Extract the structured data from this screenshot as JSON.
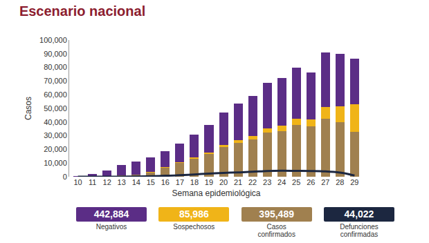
{
  "chart_data": {
    "type": "bar",
    "title": "Escenario nacional",
    "x_label": "Semana epidemiológica",
    "y_label": "Casos",
    "stacked": true,
    "grid": false,
    "categories": [
      "10",
      "11",
      "12",
      "13",
      "14",
      "15",
      "16",
      "17",
      "18",
      "19",
      "20",
      "21",
      "22",
      "23",
      "24",
      "25",
      "26",
      "27",
      "28",
      "29"
    ],
    "series": [
      {
        "name": "Negativos",
        "type": "bar",
        "color": "#5b2d86",
        "values": [
          290,
          1880,
          4150,
          7600,
          9300,
          10700,
          11500,
          13300,
          17000,
          20300,
          24000,
          26500,
          29000,
          33000,
          34500,
          37500,
          34500,
          40000,
          38500,
          33500
        ],
        "total": {
          "value": 442884,
          "label": "442,884"
        }
      },
      {
        "name": "Sospechosos",
        "type": "bar",
        "color": "#f0b418",
        "values": [
          0,
          20,
          50,
          100,
          200,
          300,
          500,
          700,
          1000,
          1200,
          1500,
          2000,
          2500,
          3000,
          4000,
          4500,
          5000,
          8500,
          11500,
          20000
        ],
        "total": {
          "value": 85986,
          "label": "85,986"
        }
      },
      {
        "name": "Casos confirmados",
        "type": "bar",
        "color": "#a0804f",
        "values": [
          10,
          100,
          300,
          800,
          1500,
          3000,
          6500,
          10000,
          13000,
          16500,
          21500,
          25000,
          27500,
          32500,
          33500,
          38000,
          37000,
          42500,
          40000,
          33000
        ],
        "total": {
          "value": 395489,
          "label": "395,489"
        }
      },
      {
        "name": "Defunciones confirmadas",
        "type": "line",
        "color": "#1c2740",
        "values": [
          0,
          0,
          5,
          30,
          150,
          400,
          700,
          1100,
          1700,
          2300,
          2800,
          3200,
          3600,
          4200,
          4400,
          4300,
          4200,
          3900,
          3000,
          900
        ],
        "total": {
          "value": 44022,
          "label": "44,022"
        }
      }
    ],
    "ylim": [
      0,
      100000
    ],
    "yticks": [
      0,
      {
        "value": 10000,
        "label": "10,000"
      },
      {
        "value": 20000,
        "label": "20,000"
      },
      {
        "value": 30000,
        "label": "30,000"
      },
      {
        "value": 40000,
        "label": "40,000"
      },
      {
        "value": 50000,
        "label": "50,000"
      },
      {
        "value": 60000,
        "label": "60,000"
      },
      {
        "value": 70000,
        "label": "70,000"
      },
      {
        "value": 80000,
        "label": "80,000"
      },
      {
        "value": 90000,
        "label": "90,000"
      },
      {
        "value": 100000,
        "label": "100,000"
      }
    ]
  }
}
